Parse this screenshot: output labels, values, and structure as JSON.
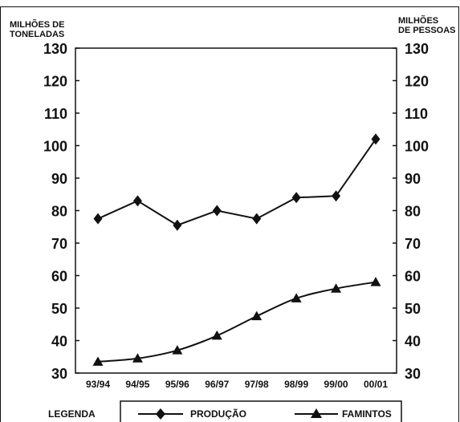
{
  "chart_data": {
    "type": "line",
    "categories": [
      "93/94",
      "94/95",
      "95/96",
      "96/97",
      "97/98",
      "98/99",
      "99/00",
      "00/01"
    ],
    "left_axis": {
      "title_line1": "MILHÕES DE",
      "title_line2": "TONELADAS",
      "range": [
        30,
        130
      ],
      "ticks": [
        30,
        40,
        50,
        60,
        70,
        80,
        90,
        100,
        110,
        120,
        130
      ]
    },
    "right_axis": {
      "title_line1": "MILHÕES",
      "title_line2": "DE PESSOAS",
      "range": [
        30,
        130
      ],
      "ticks": [
        30,
        40,
        50,
        60,
        70,
        80,
        90,
        100,
        110,
        120,
        130
      ]
    },
    "series": [
      {
        "name": "PRODUÇÃO",
        "marker": "diamond",
        "axis": "left",
        "values": [
          77.5,
          83,
          75.5,
          80,
          77.5,
          84,
          84.5,
          102
        ]
      },
      {
        "name": "FAMINTOS",
        "marker": "triangle",
        "axis": "right",
        "values": [
          33.5,
          34.5,
          37,
          41.5,
          47.5,
          53,
          56,
          58
        ]
      }
    ],
    "legend": {
      "title": "LEGENDA",
      "placement": "bottom"
    },
    "grid": false,
    "colors": {
      "line": "#111111",
      "background": "#ffffff"
    }
  }
}
